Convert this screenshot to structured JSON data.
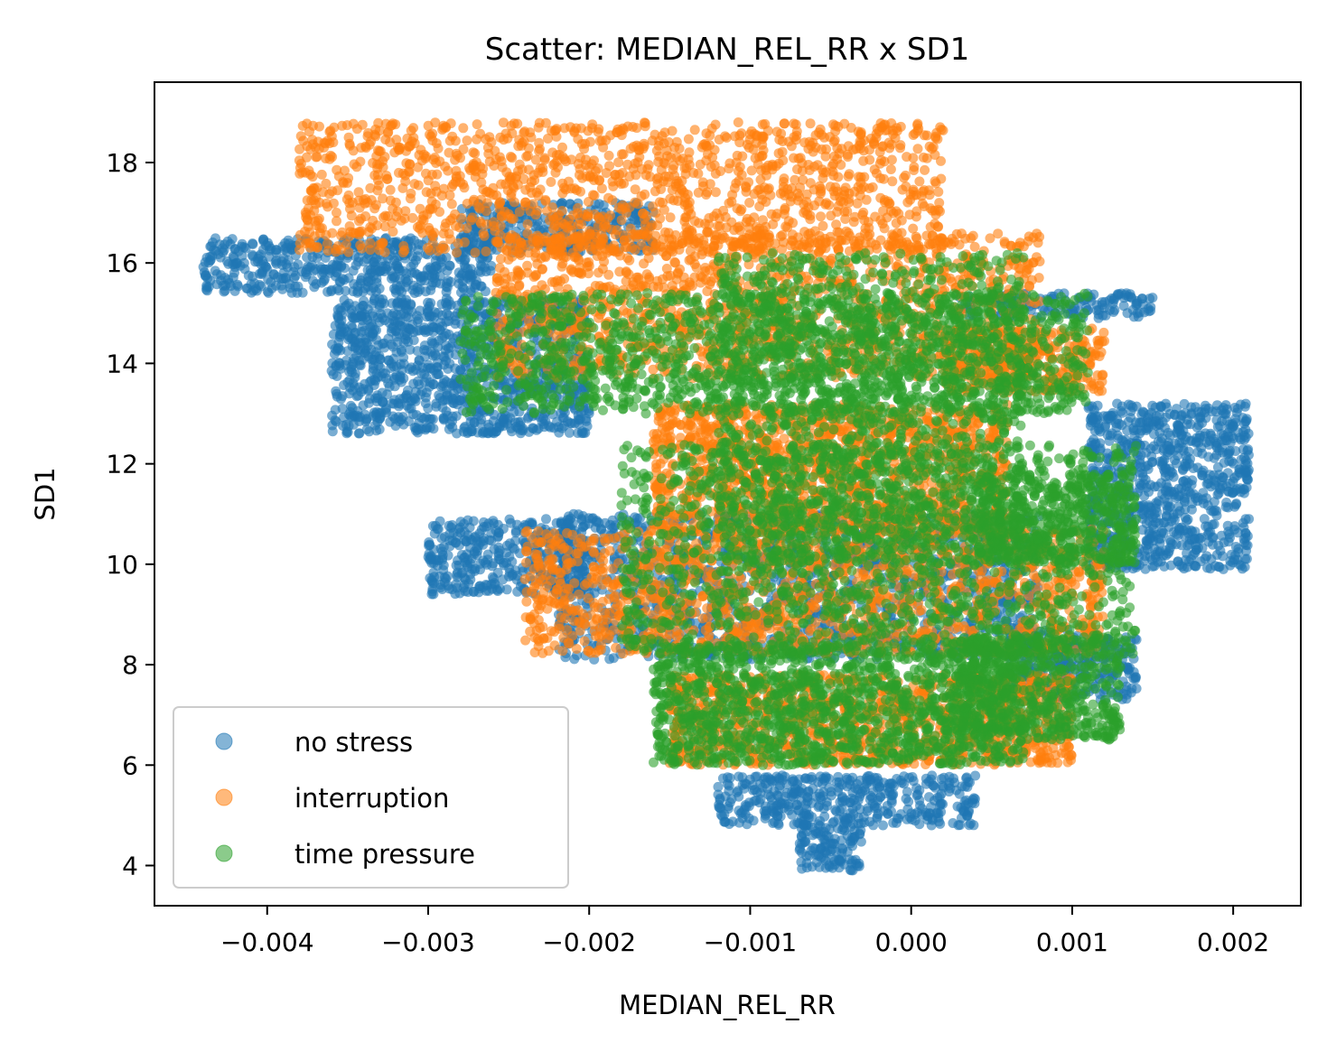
{
  "chart_data": {
    "type": "scatter",
    "title": "Scatter: MEDIAN_REL_RR x SD1",
    "xlabel": "MEDIAN_REL_RR",
    "ylabel": "SD1",
    "xlim": [
      -0.0047,
      0.00242
    ],
    "ylim": [
      3.2,
      19.6
    ],
    "x_ticks": [
      -0.004,
      -0.003,
      -0.002,
      -0.001,
      0.0,
      0.001,
      0.002
    ],
    "x_tick_labels": [
      "−0.004",
      "−0.003",
      "−0.002",
      "−0.001",
      "0.000",
      "0.001",
      "0.002"
    ],
    "y_ticks": [
      4,
      6,
      8,
      10,
      12,
      14,
      16,
      18
    ],
    "y_tick_labels": [
      "4",
      "6",
      "8",
      "10",
      "12",
      "14",
      "16",
      "18"
    ],
    "grid": false,
    "legend_position": "lower-left",
    "series": [
      {
        "name": "no stress",
        "color": "#1f77b4",
        "regions": [
          {
            "x": [
              -0.0044,
              -0.0026
            ],
            "y": [
              15.4,
              16.5
            ]
          },
          {
            "x": [
              -0.0036,
              -0.002
            ],
            "y": [
              12.6,
              15.3
            ]
          },
          {
            "x": [
              -0.0028,
              -0.0016
            ],
            "y": [
              16.2,
              17.2
            ]
          },
          {
            "x": [
              -0.003,
              -0.002
            ],
            "y": [
              9.4,
              10.9
            ]
          },
          {
            "x": [
              -0.0022,
              0.0008
            ],
            "y": [
              8.1,
              11.0
            ]
          },
          {
            "x": [
              0.0003,
              0.0015
            ],
            "y": [
              14.9,
              15.4
            ]
          },
          {
            "x": [
              0.0011,
              0.0021
            ],
            "y": [
              9.9,
              13.2
            ]
          },
          {
            "x": [
              0.0006,
              0.0014
            ],
            "y": [
              7.3,
              8.7
            ]
          },
          {
            "x": [
              -0.0012,
              0.0004
            ],
            "y": [
              4.8,
              5.8
            ]
          },
          {
            "x": [
              -0.0007,
              -0.0003
            ],
            "y": [
              3.9,
              4.9
            ]
          }
        ]
      },
      {
        "name": "interruption",
        "color": "#ff7f0e",
        "regions": [
          {
            "x": [
              -0.0038,
              0.0002
            ],
            "y": [
              16.2,
              18.8
            ]
          },
          {
            "x": [
              -0.0026,
              0.0008
            ],
            "y": [
              13.7,
              16.6
            ]
          },
          {
            "x": [
              -0.0024,
              0.0012
            ],
            "y": [
              8.2,
              10.7
            ]
          },
          {
            "x": [
              -0.0016,
              0.0006
            ],
            "y": [
              10.6,
              13.2
            ]
          },
          {
            "x": [
              -0.0015,
              0.001
            ],
            "y": [
              6.0,
              7.8
            ]
          },
          {
            "x": [
              0.0002,
              0.0012
            ],
            "y": [
              13.4,
              14.7
            ]
          }
        ]
      },
      {
        "name": "time pressure",
        "color": "#2ca02c",
        "regions": [
          {
            "x": [
              -0.0028,
              0.0011
            ],
            "y": [
              13.0,
              15.4
            ]
          },
          {
            "x": [
              -0.0012,
              0.0007
            ],
            "y": [
              10.0,
              16.2
            ]
          },
          {
            "x": [
              -0.0018,
              0.0014
            ],
            "y": [
              8.2,
              12.4
            ]
          },
          {
            "x": [
              -0.0016,
              0.0007
            ],
            "y": [
              6.0,
              8.4
            ]
          },
          {
            "x": [
              0.0003,
              0.0013
            ],
            "y": [
              6.5,
              8.6
            ]
          },
          {
            "x": [
              0.0004,
              0.0014
            ],
            "y": [
              10.0,
              11.8
            ]
          }
        ]
      }
    ]
  }
}
